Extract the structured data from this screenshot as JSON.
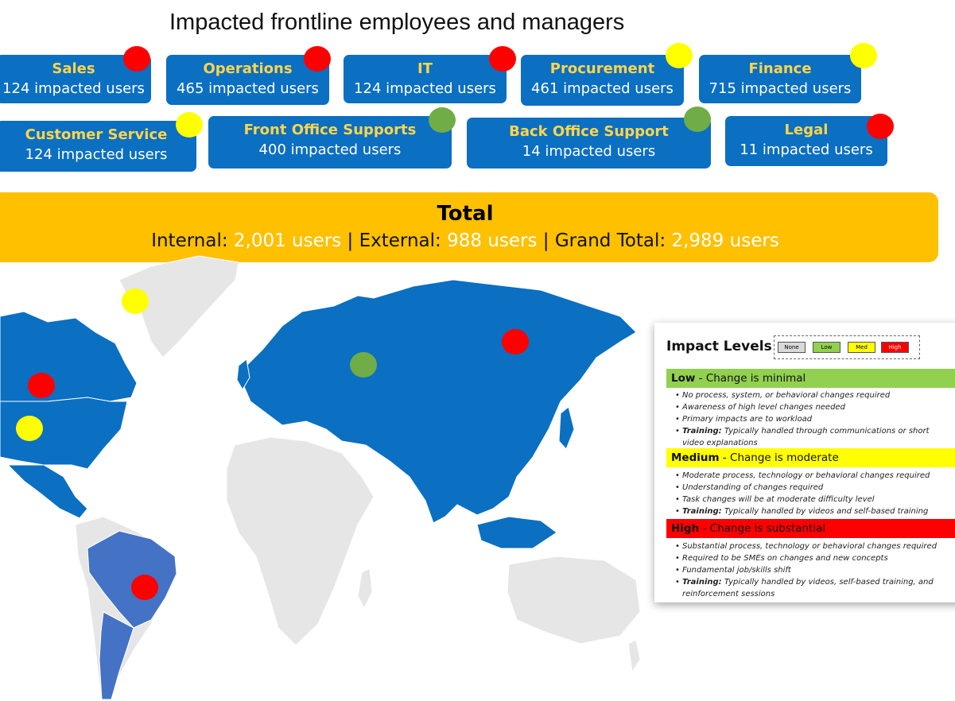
{
  "title": "Impacted frontline employees and managers",
  "colors": {
    "card": "#0b6fc2",
    "card_name": "#ffd54a",
    "total_bg": "#ffc000",
    "map_land": "#e6e6e6",
    "map_highlight": "#0b6fc2",
    "map_south_america": "#4472c4",
    "red": "#ff0000",
    "yellow": "#ffff00",
    "green": "#70ad47"
  },
  "departments": [
    {
      "name": "Sales",
      "users": "124 impacted users",
      "impact": "high"
    },
    {
      "name": "Operations",
      "users": "465 impacted users",
      "impact": "high"
    },
    {
      "name": "IT",
      "users": "124 impacted users",
      "impact": "high"
    },
    {
      "name": "Procurement",
      "users": "461 impacted users",
      "impact": "medium"
    },
    {
      "name": "Finance",
      "users": "715 impacted users",
      "impact": "medium"
    },
    {
      "name": "Customer Service",
      "users": "124 impacted users",
      "impact": "medium"
    },
    {
      "name": "Front Office Supports",
      "users": "400 impacted users",
      "impact": "low"
    },
    {
      "name": "Back Office Support",
      "users": "14 impacted users",
      "impact": "low"
    },
    {
      "name": "Legal",
      "users": "11 impacted users",
      "impact": "high"
    }
  ],
  "total": {
    "heading": "Total",
    "internal_label": "Internal:",
    "internal_value": "2,001 users",
    "external_label": "External:",
    "external_value": "988 users",
    "grand_label": "Grand Total:",
    "grand_value": "2,989 users",
    "separator": "|"
  },
  "map_markers": [
    {
      "region": "Greenland",
      "impact": "medium"
    },
    {
      "region": "Canada",
      "impact": "high"
    },
    {
      "region": "United States",
      "impact": "medium"
    },
    {
      "region": "Russia West",
      "impact": "low"
    },
    {
      "region": "Russia East",
      "impact": "high"
    },
    {
      "region": "Brazil",
      "impact": "high"
    }
  ],
  "legend": {
    "title": "Impact Levels",
    "keys": [
      {
        "label": "None",
        "color": "#d9d9d9"
      },
      {
        "label": "Low",
        "color": "#92d050"
      },
      {
        "label": "Med",
        "color": "#ffff00"
      },
      {
        "label": "High",
        "color": "#ff0000"
      }
    ],
    "levels": [
      {
        "name": "Low",
        "desc": "- Change is minimal",
        "color": "#92d050",
        "items": [
          "No process, system, or behavioral changes required",
          "Awareness of high level changes needed",
          "Primary impacts are to workload"
        ],
        "training_label": "Training:",
        "training_text": "Typically handled through communications or short video explanations"
      },
      {
        "name": "Medium",
        "desc": "- Change is moderate",
        "color": "#ffff00",
        "items": [
          "Moderate process, technology or behavioral changes required",
          "Understanding of changes required",
          "Task changes will be at moderate difficulty level"
        ],
        "training_label": "Training:",
        "training_text": "Typically handled by videos and self-based training"
      },
      {
        "name": "High",
        "desc": "- Change is substantial",
        "color": "#ff0000",
        "items": [
          "Substantial process, technology or behavioral changes required",
          "Required to be SMEs on changes and new concepts",
          "Fundamental job/skills shift"
        ],
        "training_label": "Training:",
        "training_text": "Typically handled by videos, self-based training, and reinforcement sessions"
      }
    ]
  }
}
